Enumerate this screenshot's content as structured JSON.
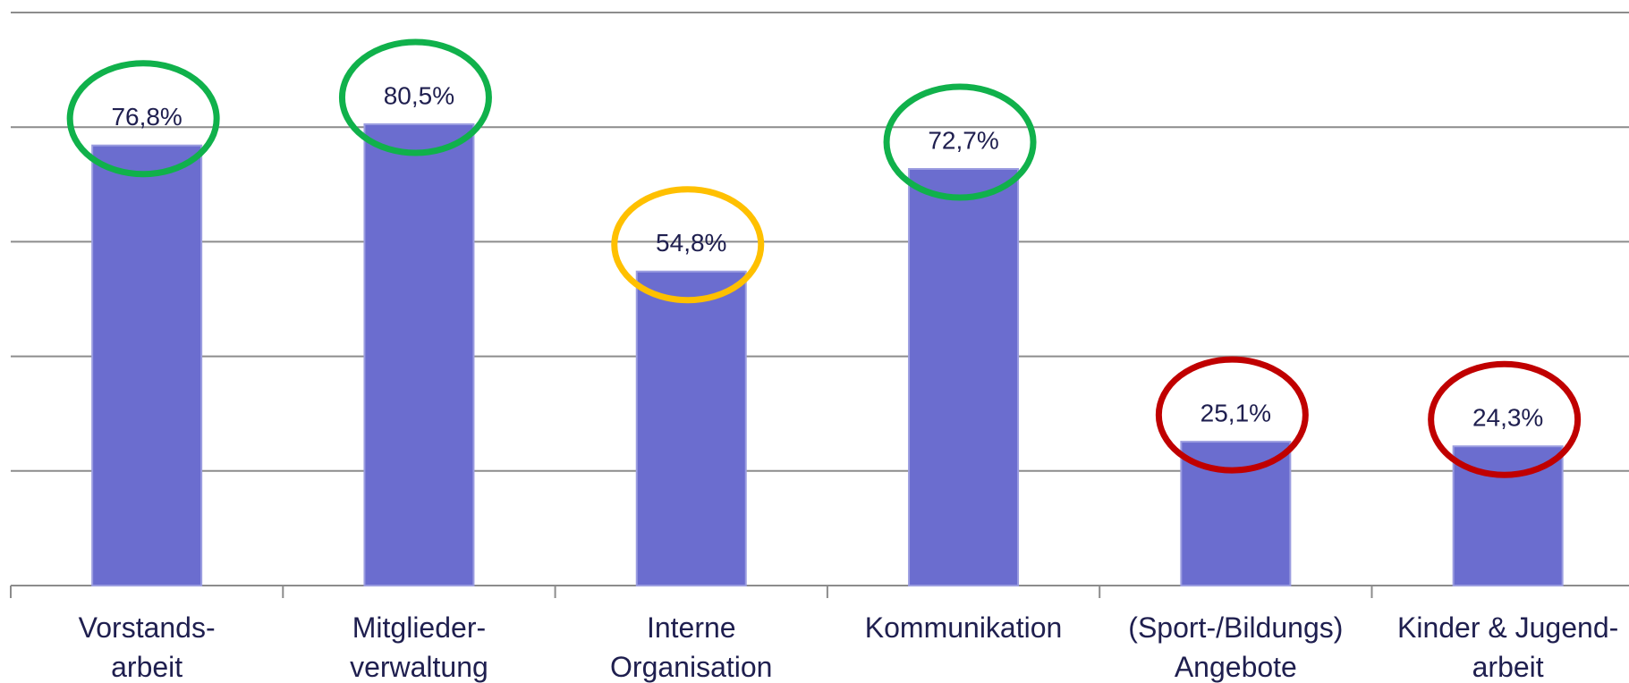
{
  "chart_data": {
    "type": "bar",
    "categories": [
      "Vorstands-\narbeit",
      "Mitglieder-\nverwaltung",
      "Interne\nOrganisation",
      "Kommunikation",
      "(Sport-/Bildungs)\nAngebote",
      "Kinder & Jugend-\narbeit"
    ],
    "values": [
      76.8,
      80.5,
      54.8,
      72.7,
      25.1,
      24.3
    ],
    "value_labels": [
      "76,8%",
      "80,5%",
      "54,8%",
      "72,7%",
      "25,1%",
      "24,3%"
    ],
    "color": "#6b6dcf",
    "circle_colors": [
      "#10b14b",
      "#10b14b",
      "#ffc000",
      "#10b14b",
      "#c00000",
      "#c00000"
    ],
    "ylim": [
      0,
      100
    ],
    "yticks": [
      0,
      20,
      40,
      60,
      80,
      100
    ],
    "grid": true
  }
}
